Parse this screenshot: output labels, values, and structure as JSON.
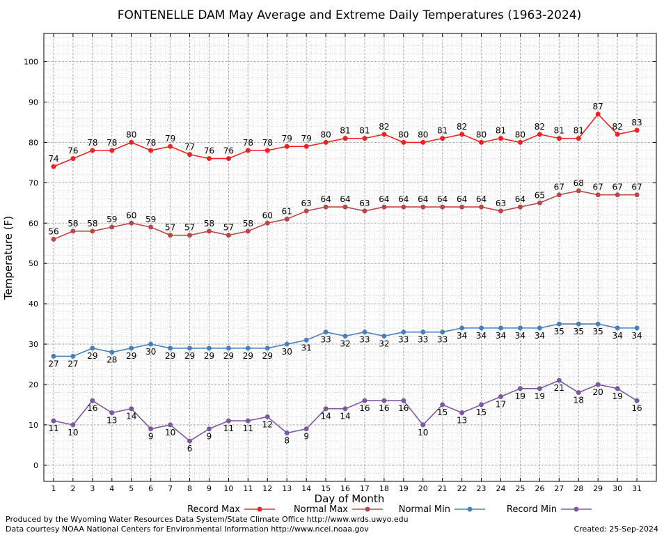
{
  "chart_data": {
    "type": "line",
    "title": "FONTENELLE DAM May Average and Extreme Daily Temperatures (1963-2024)",
    "xlabel": "Day of Month",
    "ylabel": "Temperature (F)",
    "x": [
      1,
      2,
      3,
      4,
      5,
      6,
      7,
      8,
      9,
      10,
      11,
      12,
      13,
      14,
      15,
      16,
      17,
      18,
      19,
      20,
      21,
      22,
      23,
      24,
      25,
      26,
      27,
      28,
      29,
      30,
      31
    ],
    "ylim": [
      -4,
      107
    ],
    "yticks": [
      0,
      10,
      20,
      30,
      40,
      50,
      60,
      70,
      80,
      90,
      100
    ],
    "grid": true,
    "legend_position": "bottom",
    "series": [
      {
        "name": "Record Max",
        "color": "#ee2222",
        "values": [
          74,
          76,
          78,
          78,
          80,
          78,
          79,
          77,
          76,
          76,
          78,
          78,
          79,
          79,
          80,
          81,
          81,
          82,
          80,
          80,
          81,
          82,
          80,
          81,
          80,
          82,
          81,
          81,
          87,
          82,
          83
        ],
        "label_side": "above"
      },
      {
        "name": "Normal Max",
        "color": "#b84848",
        "values": [
          56,
          58,
          58,
          59,
          60,
          59,
          57,
          57,
          58,
          57,
          58,
          60,
          61,
          63,
          64,
          64,
          63,
          64,
          64,
          64,
          64,
          64,
          64,
          63,
          64,
          65,
          67,
          68,
          67,
          67,
          67
        ],
        "label_side": "above"
      },
      {
        "name": "Normal Min",
        "color": "#4a7fba",
        "values": [
          27,
          27,
          29,
          28,
          29,
          30,
          29,
          29,
          29,
          29,
          29,
          29,
          30,
          31,
          33,
          32,
          33,
          32,
          33,
          33,
          33,
          34,
          34,
          34,
          34,
          34,
          35,
          35,
          35,
          34,
          34
        ],
        "label_side": "below"
      },
      {
        "name": "Record Min",
        "color": "#7b58a0",
        "values": [
          11,
          10,
          16,
          13,
          14,
          9,
          10,
          6,
          9,
          11,
          11,
          12,
          8,
          9,
          14,
          14,
          16,
          16,
          16,
          10,
          15,
          13,
          15,
          17,
          19,
          19,
          21,
          18,
          20,
          19,
          16
        ],
        "label_side": "below"
      }
    ]
  },
  "footer": {
    "produced_by": "Produced by the Wyoming Water Resources Data System/State Climate Office http://www.wrds.uwyo.edu",
    "data_courtesy": "Data courtesy NOAA National Centers for Environmental Information http://www.ncei.noaa.gov",
    "created": "Created:  25-Sep-2024"
  }
}
